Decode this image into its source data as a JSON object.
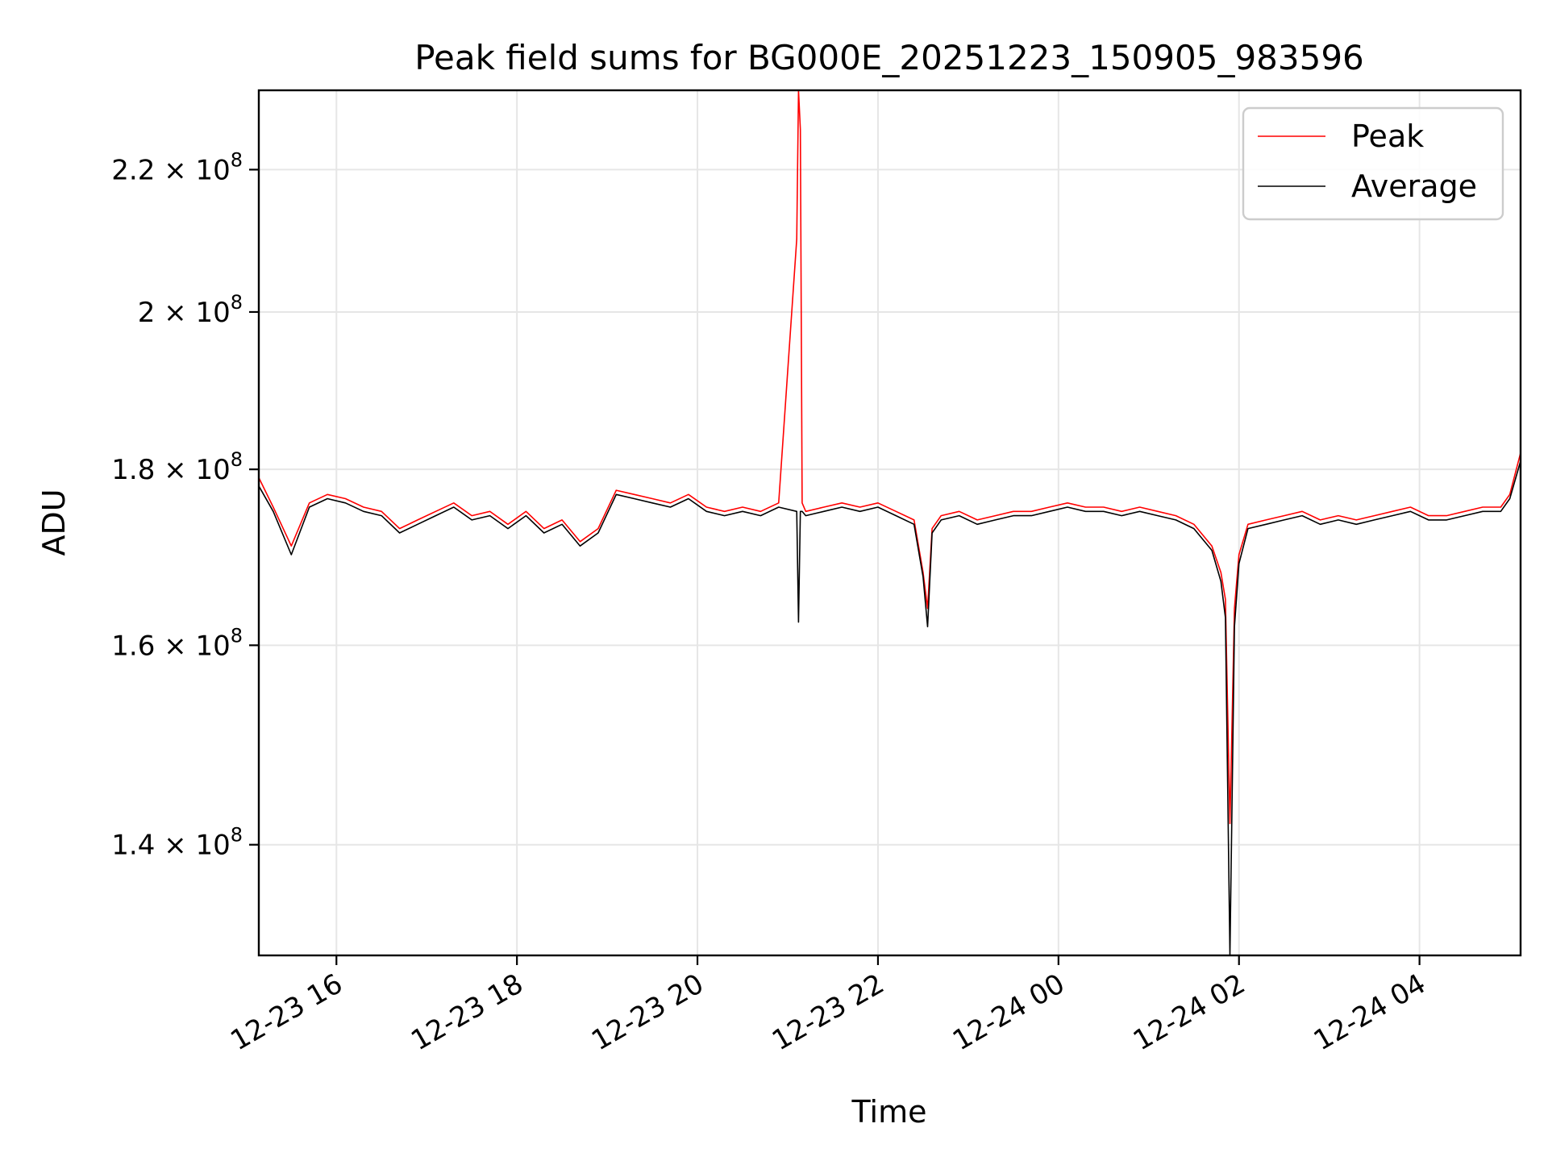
{
  "chart_data": {
    "type": "line",
    "title": "Peak field sums for BG000E_20251223_150905_983596",
    "xlabel": "Time",
    "ylabel": "ADU",
    "yscale": "log",
    "x_unit": "hours since 12-23 00:00",
    "xlim": [
      15.14,
      29.12
    ],
    "ylim": [
      130000000,
      232000000
    ],
    "grid": true,
    "legend_position": "top-right",
    "x_ticks": [
      {
        "value": 16,
        "label": "12-23 16"
      },
      {
        "value": 18,
        "label": "12-23 18"
      },
      {
        "value": 20,
        "label": "12-23 20"
      },
      {
        "value": 22,
        "label": "12-23 22"
      },
      {
        "value": 24,
        "label": "12-24 00"
      },
      {
        "value": 26,
        "label": "12-24 02"
      },
      {
        "value": 28,
        "label": "12-24 04"
      }
    ],
    "y_ticks": [
      {
        "value": 140000000,
        "mantissa": "1.4",
        "exponent": "8"
      },
      {
        "value": 160000000,
        "mantissa": "1.6",
        "exponent": "8"
      },
      {
        "value": 180000000,
        "mantissa": "1.8",
        "exponent": "8"
      },
      {
        "value": 200000000,
        "mantissa": "2",
        "exponent": "8"
      },
      {
        "value": 220000000,
        "mantissa": "2.2",
        "exponent": "8"
      }
    ],
    "tick_times_sign": "×",
    "tick_base": "10",
    "series": [
      {
        "name": "Peak",
        "color": "#ff0000",
        "x": [
          15.14,
          15.3,
          15.5,
          15.7,
          15.9,
          16.1,
          16.3,
          16.5,
          16.7,
          16.9,
          17.1,
          17.3,
          17.5,
          17.7,
          17.9,
          18.1,
          18.3,
          18.5,
          18.7,
          18.9,
          19.1,
          19.3,
          19.5,
          19.7,
          19.9,
          20.1,
          20.3,
          20.5,
          20.7,
          20.9,
          21.1,
          21.12,
          21.14,
          21.16,
          21.2,
          21.4,
          21.6,
          21.8,
          22.0,
          22.2,
          22.4,
          22.5,
          22.55,
          22.6,
          22.7,
          22.9,
          23.1,
          23.3,
          23.5,
          23.7,
          23.9,
          24.1,
          24.3,
          24.5,
          24.7,
          24.9,
          25.1,
          25.3,
          25.5,
          25.7,
          25.8,
          25.85,
          25.9,
          25.95,
          26.0,
          26.1,
          26.3,
          26.5,
          26.7,
          26.9,
          27.1,
          27.3,
          27.5,
          27.7,
          27.9,
          28.1,
          28.3,
          28.5,
          28.7,
          28.9,
          29.0,
          29.12
        ],
        "values": [
          179000000,
          175500000,
          171000000,
          176000000,
          177000000,
          176500000,
          175500000,
          175000000,
          173000000,
          174000000,
          175000000,
          176000000,
          174500000,
          175000000,
          173500000,
          175000000,
          173000000,
          174000000,
          171500000,
          173000000,
          177500000,
          177000000,
          176500000,
          176000000,
          177000000,
          175500000,
          175000000,
          175500000,
          175000000,
          176000000,
          210000000,
          232000000,
          226000000,
          176000000,
          175000000,
          175500000,
          176000000,
          175500000,
          176000000,
          175000000,
          174000000,
          168000000,
          164000000,
          173000000,
          174500000,
          175000000,
          174000000,
          174500000,
          175000000,
          175000000,
          175500000,
          176000000,
          175500000,
          175500000,
          175000000,
          175500000,
          175000000,
          174500000,
          173500000,
          171000000,
          168000000,
          165000000,
          142000000,
          164000000,
          170000000,
          173500000,
          174000000,
          174500000,
          175000000,
          174000000,
          174500000,
          174000000,
          174500000,
          175000000,
          175500000,
          174500000,
          174500000,
          175000000,
          175500000,
          175500000,
          177000000,
          182000000
        ]
      },
      {
        "name": "Average",
        "color": "#000000",
        "x": [
          15.14,
          15.3,
          15.5,
          15.7,
          15.9,
          16.1,
          16.3,
          16.5,
          16.7,
          16.9,
          17.1,
          17.3,
          17.5,
          17.7,
          17.9,
          18.1,
          18.3,
          18.5,
          18.7,
          18.9,
          19.1,
          19.3,
          19.5,
          19.7,
          19.9,
          20.1,
          20.3,
          20.5,
          20.7,
          20.9,
          21.1,
          21.12,
          21.14,
          21.16,
          21.2,
          21.4,
          21.6,
          21.8,
          22.0,
          22.2,
          22.4,
          22.5,
          22.55,
          22.6,
          22.7,
          22.9,
          23.1,
          23.3,
          23.5,
          23.7,
          23.9,
          24.1,
          24.3,
          24.5,
          24.7,
          24.9,
          25.1,
          25.3,
          25.5,
          25.7,
          25.8,
          25.85,
          25.9,
          25.95,
          26.0,
          26.1,
          26.3,
          26.5,
          26.7,
          26.9,
          27.1,
          27.3,
          27.5,
          27.7,
          27.9,
          28.1,
          28.3,
          28.5,
          28.7,
          28.9,
          29.0,
          29.12
        ],
        "values": [
          178000000,
          175000000,
          170000000,
          175500000,
          176500000,
          176000000,
          175000000,
          174500000,
          172500000,
          173500000,
          174500000,
          175500000,
          174000000,
          174500000,
          173000000,
          174500000,
          172500000,
          173500000,
          171000000,
          172500000,
          177000000,
          176500000,
          176000000,
          175500000,
          176500000,
          175000000,
          174500000,
          175000000,
          174500000,
          175500000,
          175000000,
          162500000,
          175000000,
          175000000,
          174500000,
          175000000,
          175500000,
          175000000,
          175500000,
          174500000,
          173500000,
          167500000,
          162000000,
          172500000,
          174000000,
          174500000,
          173500000,
          174000000,
          174500000,
          174500000,
          175000000,
          175500000,
          175000000,
          175000000,
          174500000,
          175000000,
          174500000,
          174000000,
          173000000,
          170500000,
          167000000,
          163000000,
          130000000,
          162000000,
          169000000,
          173000000,
          173500000,
          174000000,
          174500000,
          173500000,
          174000000,
          173500000,
          174000000,
          174500000,
          175000000,
          174000000,
          174000000,
          174500000,
          175000000,
          175000000,
          176500000,
          181000000
        ]
      }
    ]
  }
}
